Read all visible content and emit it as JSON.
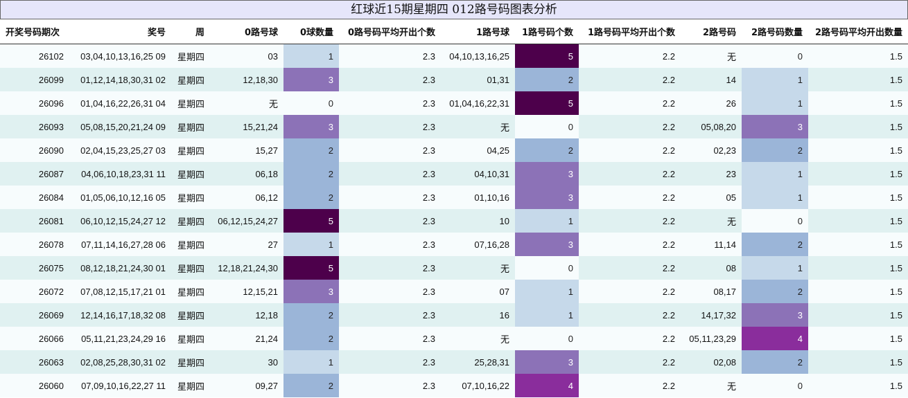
{
  "title": "红球近15期星期四 012路号码图表分析",
  "columns": [
    "开奖号码期次",
    "奖号",
    "周",
    "0路号球",
    "0球数量",
    "0路号码平均开出个数",
    "1路号球",
    "1路号码个数",
    "1路号码平均开出个数",
    "2路号码",
    "2路号码数量",
    "2路号码平均开出数量"
  ],
  "colors": {
    "0": "#f7fcfd",
    "1": "#c6d9ea",
    "2": "#9bb5d8",
    "3": "#8c72b7",
    "4": "#8a2d9c",
    "5": "#4d004b",
    "row_odd": "#f7fcfd",
    "row_even": "#e0f1f1",
    "title_bg": "#e6e6fa"
  },
  "chart_data": {
    "type": "table",
    "title": "红球近15期星期四 012路号码图表分析",
    "rows": [
      {
        "period": "26102",
        "numbers": "03,04,10,13,16,25 09",
        "weekday": "星期四",
        "r0_balls": "03",
        "r0_count": 1,
        "r0_avg": "2.3",
        "r1_balls": "04,10,13,16,25",
        "r1_count": 5,
        "r1_avg": "2.2",
        "r2_balls": "无",
        "r2_count": 0,
        "r2_avg": "1.5"
      },
      {
        "period": "26099",
        "numbers": "01,12,14,18,30,31 02",
        "weekday": "星期四",
        "r0_balls": "12,18,30",
        "r0_count": 3,
        "r0_avg": "2.3",
        "r1_balls": "01,31",
        "r1_count": 2,
        "r1_avg": "2.2",
        "r2_balls": "14",
        "r2_count": 1,
        "r2_avg": "1.5"
      },
      {
        "period": "26096",
        "numbers": "01,04,16,22,26,31 04",
        "weekday": "星期四",
        "r0_balls": "无",
        "r0_count": 0,
        "r0_avg": "2.3",
        "r1_balls": "01,04,16,22,31",
        "r1_count": 5,
        "r1_avg": "2.2",
        "r2_balls": "26",
        "r2_count": 1,
        "r2_avg": "1.5"
      },
      {
        "period": "26093",
        "numbers": "05,08,15,20,21,24 09",
        "weekday": "星期四",
        "r0_balls": "15,21,24",
        "r0_count": 3,
        "r0_avg": "2.3",
        "r1_balls": "无",
        "r1_count": 0,
        "r1_avg": "2.2",
        "r2_balls": "05,08,20",
        "r2_count": 3,
        "r2_avg": "1.5"
      },
      {
        "period": "26090",
        "numbers": "02,04,15,23,25,27 03",
        "weekday": "星期四",
        "r0_balls": "15,27",
        "r0_count": 2,
        "r0_avg": "2.3",
        "r1_balls": "04,25",
        "r1_count": 2,
        "r1_avg": "2.2",
        "r2_balls": "02,23",
        "r2_count": 2,
        "r2_avg": "1.5"
      },
      {
        "period": "26087",
        "numbers": "04,06,10,18,23,31 11",
        "weekday": "星期四",
        "r0_balls": "06,18",
        "r0_count": 2,
        "r0_avg": "2.3",
        "r1_balls": "04,10,31",
        "r1_count": 3,
        "r1_avg": "2.2",
        "r2_balls": "23",
        "r2_count": 1,
        "r2_avg": "1.5"
      },
      {
        "period": "26084",
        "numbers": "01,05,06,10,12,16 05",
        "weekday": "星期四",
        "r0_balls": "06,12",
        "r0_count": 2,
        "r0_avg": "2.3",
        "r1_balls": "01,10,16",
        "r1_count": 3,
        "r1_avg": "2.2",
        "r2_balls": "05",
        "r2_count": 1,
        "r2_avg": "1.5"
      },
      {
        "period": "26081",
        "numbers": "06,10,12,15,24,27 12",
        "weekday": "星期四",
        "r0_balls": "06,12,15,24,27",
        "r0_count": 5,
        "r0_avg": "2.3",
        "r1_balls": "10",
        "r1_count": 1,
        "r1_avg": "2.2",
        "r2_balls": "无",
        "r2_count": 0,
        "r2_avg": "1.5"
      },
      {
        "period": "26078",
        "numbers": "07,11,14,16,27,28 06",
        "weekday": "星期四",
        "r0_balls": "27",
        "r0_count": 1,
        "r0_avg": "2.3",
        "r1_balls": "07,16,28",
        "r1_count": 3,
        "r1_avg": "2.2",
        "r2_balls": "11,14",
        "r2_count": 2,
        "r2_avg": "1.5"
      },
      {
        "period": "26075",
        "numbers": "08,12,18,21,24,30 01",
        "weekday": "星期四",
        "r0_balls": "12,18,21,24,30",
        "r0_count": 5,
        "r0_avg": "2.3",
        "r1_balls": "无",
        "r1_count": 0,
        "r1_avg": "2.2",
        "r2_balls": "08",
        "r2_count": 1,
        "r2_avg": "1.5"
      },
      {
        "period": "26072",
        "numbers": "07,08,12,15,17,21 01",
        "weekday": "星期四",
        "r0_balls": "12,15,21",
        "r0_count": 3,
        "r0_avg": "2.3",
        "r1_balls": "07",
        "r1_count": 1,
        "r1_avg": "2.2",
        "r2_balls": "08,17",
        "r2_count": 2,
        "r2_avg": "1.5"
      },
      {
        "period": "26069",
        "numbers": "12,14,16,17,18,32 08",
        "weekday": "星期四",
        "r0_balls": "12,18",
        "r0_count": 2,
        "r0_avg": "2.3",
        "r1_balls": "16",
        "r1_count": 1,
        "r1_avg": "2.2",
        "r2_balls": "14,17,32",
        "r2_count": 3,
        "r2_avg": "1.5"
      },
      {
        "period": "26066",
        "numbers": "05,11,21,23,24,29 16",
        "weekday": "星期四",
        "r0_balls": "21,24",
        "r0_count": 2,
        "r0_avg": "2.3",
        "r1_balls": "无",
        "r1_count": 0,
        "r1_avg": "2.2",
        "r2_balls": "05,11,23,29",
        "r2_count": 4,
        "r2_avg": "1.5"
      },
      {
        "period": "26063",
        "numbers": "02,08,25,28,30,31 02",
        "weekday": "星期四",
        "r0_balls": "30",
        "r0_count": 1,
        "r0_avg": "2.3",
        "r1_balls": "25,28,31",
        "r1_count": 3,
        "r1_avg": "2.2",
        "r2_balls": "02,08",
        "r2_count": 2,
        "r2_avg": "1.5"
      },
      {
        "period": "26060",
        "numbers": "07,09,10,16,22,27 11",
        "weekday": "星期四",
        "r0_balls": "09,27",
        "r0_count": 2,
        "r0_avg": "2.3",
        "r1_balls": "07,10,16,22",
        "r1_count": 4,
        "r1_avg": "2.2",
        "r2_balls": "无",
        "r2_count": 0,
        "r2_avg": "1.5"
      }
    ]
  }
}
